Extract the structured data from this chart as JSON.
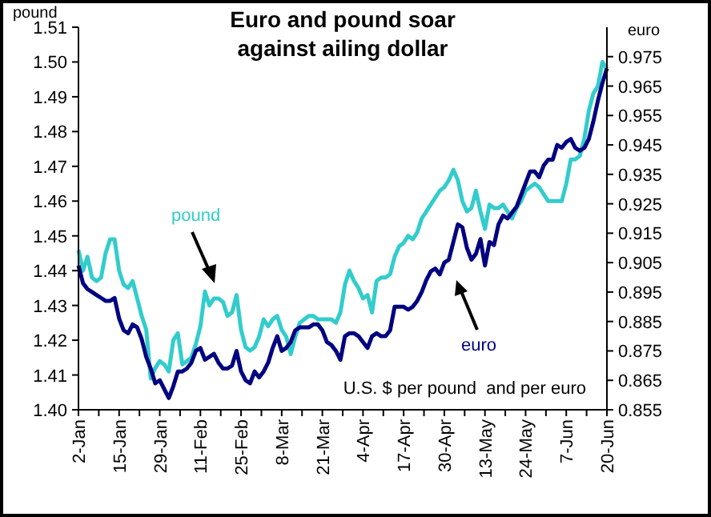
{
  "chart_data": {
    "type": "line",
    "title": "Euro and pound soar\nagainst ailing dollar",
    "ylabel": "pound",
    "y2label": "euro",
    "categories": [
      "2-Jan",
      null,
      null,
      null,
      null,
      null,
      null,
      null,
      null,
      "15-Jan",
      null,
      null,
      null,
      null,
      null,
      null,
      null,
      null,
      "29-Jan",
      null,
      null,
      null,
      null,
      null,
      null,
      null,
      null,
      "11-Feb",
      null,
      null,
      null,
      null,
      null,
      null,
      null,
      null,
      "25-Feb",
      null,
      null,
      null,
      null,
      null,
      null,
      null,
      null,
      "8-Mar",
      null,
      null,
      null,
      null,
      null,
      null,
      null,
      null,
      "21-Mar",
      null,
      null,
      null,
      null,
      null,
      null,
      null,
      null,
      "4-Apr",
      null,
      null,
      null,
      null,
      null,
      null,
      null,
      null,
      "17-Apr",
      null,
      null,
      null,
      null,
      null,
      null,
      null,
      null,
      "30-Apr",
      null,
      null,
      null,
      null,
      null,
      null,
      null,
      null,
      "13-May",
      null,
      null,
      null,
      null,
      null,
      null,
      null,
      null,
      "24-May",
      null,
      null,
      null,
      null,
      null,
      null,
      null,
      null,
      "7-Jun",
      null,
      null,
      null,
      null,
      null,
      null,
      null,
      null,
      "20-Jun"
    ],
    "series": [
      {
        "name": "pound",
        "color": "#33cccc",
        "values": [
          1.446,
          1.44,
          1.444,
          1.438,
          1.437,
          1.438,
          1.445,
          1.449,
          1.449,
          1.44,
          1.436,
          1.435,
          1.437,
          1.432,
          1.427,
          1.423,
          1.409,
          1.412,
          1.414,
          1.413,
          1.411,
          1.42,
          1.422,
          1.413,
          1.414,
          1.415,
          1.419,
          1.424,
          1.434,
          1.43,
          1.432,
          1.432,
          1.431,
          1.427,
          1.428,
          1.433,
          1.423,
          1.418,
          1.417,
          1.418,
          1.421,
          1.426,
          1.424,
          1.426,
          1.427,
          1.423,
          1.421,
          1.416,
          1.421,
          1.425,
          1.426,
          1.427,
          1.427,
          1.426,
          1.426,
          1.426,
          1.426,
          1.425,
          1.428,
          1.436,
          1.44,
          1.437,
          1.435,
          1.432,
          1.433,
          1.428,
          1.437,
          1.438,
          1.438,
          1.439,
          1.444,
          1.447,
          1.448,
          1.45,
          1.449,
          1.451,
          1.455,
          1.457,
          1.459,
          1.461,
          1.463,
          1.464,
          1.466,
          1.469,
          1.466,
          1.46,
          1.457,
          1.458,
          1.463,
          1.457,
          1.452,
          1.459,
          1.458,
          1.458,
          1.459,
          1.457,
          1.455,
          1.458,
          1.46,
          1.463,
          1.464,
          1.465,
          1.464,
          1.462,
          1.46,
          1.46,
          1.46,
          1.46,
          1.465,
          1.472,
          1.472,
          1.473,
          1.478,
          1.486,
          1.491,
          1.493,
          1.5,
          1.498
        ]
      },
      {
        "name": "euro",
        "color": "#000080",
        "axis": "y2",
        "values": [
          0.904,
          0.898,
          0.896,
          0.895,
          0.894,
          0.893,
          0.892,
          0.892,
          0.893,
          0.886,
          0.882,
          0.881,
          0.884,
          0.883,
          0.879,
          0.873,
          0.869,
          0.864,
          0.865,
          0.862,
          0.859,
          0.863,
          0.868,
          0.868,
          0.869,
          0.871,
          0.875,
          0.876,
          0.872,
          0.873,
          0.874,
          0.871,
          0.869,
          0.869,
          0.87,
          0.875,
          0.868,
          0.865,
          0.864,
          0.868,
          0.866,
          0.868,
          0.871,
          0.876,
          0.88,
          0.875,
          0.876,
          0.878,
          0.882,
          0.883,
          0.883,
          0.883,
          0.884,
          0.884,
          0.882,
          0.878,
          0.877,
          0.875,
          0.872,
          0.88,
          0.881,
          0.881,
          0.88,
          0.878,
          0.876,
          0.88,
          0.881,
          0.88,
          0.88,
          0.882,
          0.89,
          0.89,
          0.89,
          0.889,
          0.89,
          0.892,
          0.895,
          0.899,
          0.902,
          0.903,
          0.901,
          0.905,
          0.906,
          0.912,
          0.918,
          0.917,
          0.91,
          0.906,
          0.908,
          0.913,
          0.904,
          0.912,
          0.911,
          0.918,
          0.921,
          0.92,
          0.922,
          0.924,
          0.928,
          0.932,
          0.936,
          0.936,
          0.934,
          0.938,
          0.94,
          0.94,
          0.945,
          0.944,
          0.946,
          0.947,
          0.944,
          0.943,
          0.944,
          0.947,
          0.953,
          0.96,
          0.966,
          0.971
        ]
      }
    ],
    "ylim": [
      1.4,
      1.51
    ],
    "yticks": [
      {
        "value": 1.4,
        "label": "1.40"
      },
      1.41,
      1.42,
      1.43,
      1.44,
      1.45,
      1.46,
      1.47,
      1.48,
      1.49,
      {
        "value": 1.5,
        "label": "1.50"
      },
      1.51
    ],
    "y2lim": [
      0.855,
      0.985
    ],
    "y2ticks": [
      0.855,
      0.865,
      0.875,
      0.885,
      0.895,
      0.905,
      0.915,
      0.925,
      0.935,
      0.945,
      0.955,
      0.965,
      0.975
    ],
    "grid": false,
    "marker": "none",
    "line_style": "solid",
    "annotations": [
      "U.S. $ per pound  and per euro"
    ]
  }
}
